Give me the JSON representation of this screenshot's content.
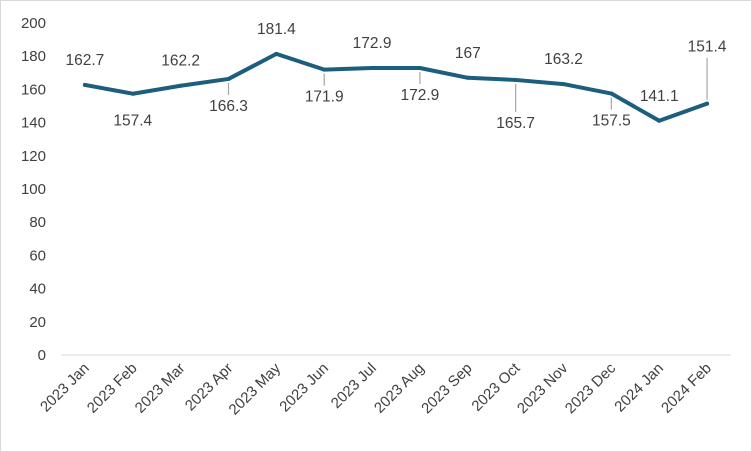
{
  "chart_data": {
    "type": "line",
    "title": "",
    "xlabel": "",
    "ylabel": "",
    "categories": [
      "2023 Jan",
      "2023 Feb",
      "2023 Mar",
      "2023 Apr",
      "2023 May",
      "2023 Jun",
      "2023 Jul",
      "2023 Aug",
      "2023 Sep",
      "2023 Oct",
      "2023 Nov",
      "2023 Dec",
      "2024 Jan",
      "2024 Feb"
    ],
    "series": [
      {
        "values": [
          162.7,
          157.4,
          162.2,
          166.3,
          181.4,
          171.9,
          172.9,
          172.9,
          167,
          165.7,
          163.2,
          157.5,
          141.1,
          151.4
        ],
        "data_labels": [
          "162.7",
          "157.4",
          "162.2",
          "166.3",
          "181.4",
          "171.9",
          "172.9",
          "172.9",
          "167",
          "165.7",
          "163.2",
          "157.5",
          "141.1",
          "151.4"
        ],
        "label_placement": [
          "above",
          "below",
          "above",
          "below",
          "above",
          "below",
          "above",
          "below",
          "above",
          "below",
          "above",
          "below",
          "above",
          "above"
        ],
        "color": "#1b5e7e"
      }
    ],
    "ylim": [
      0,
      200
    ],
    "yticks": [
      "0",
      "20",
      "40",
      "60",
      "80",
      "100",
      "120",
      "140",
      "160",
      "180",
      "200"
    ],
    "grid": false,
    "legend": "none"
  },
  "colors": {
    "line": "#1b5e7e",
    "axis": "#d9d9d9",
    "leader": "#a6a6a6",
    "text": "#404040"
  }
}
